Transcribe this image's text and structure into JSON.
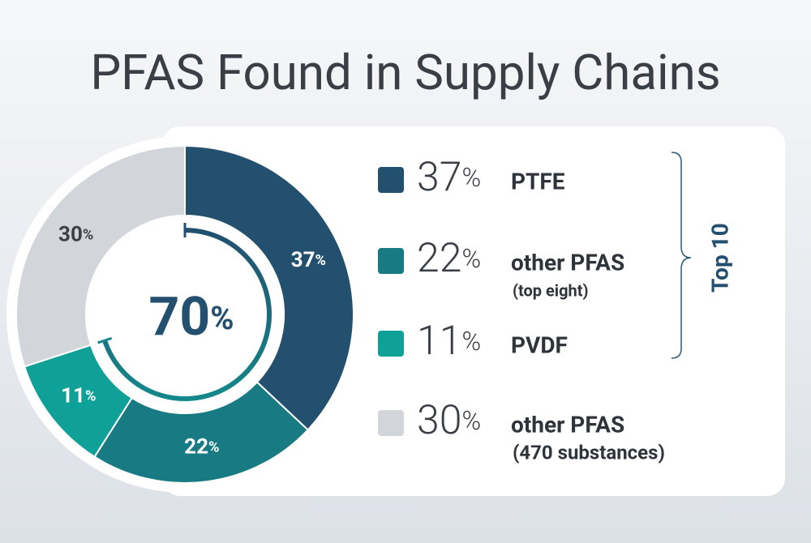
{
  "chart_data": {
    "type": "donut",
    "title": "PFAS Found in Supply Chains",
    "categories": [
      "PTFE",
      "other PFAS",
      "PVDF",
      "other PFAS"
    ],
    "category_notes": [
      null,
      "(top eight)",
      null,
      "(470 substances)"
    ],
    "values": [
      37,
      22,
      11,
      30
    ],
    "value_labels": [
      "37%",
      "22%",
      "11%",
      "30%"
    ],
    "colors": [
      "#24506f",
      "#187a83",
      "#0fa197",
      "#d2d5d9"
    ],
    "label_colors": [
      "#ffffff",
      "#ffffff",
      "#ffffff",
      "#3c4148"
    ],
    "center_value": 70,
    "center_label": "70%",
    "group_label": "Top 10"
  }
}
